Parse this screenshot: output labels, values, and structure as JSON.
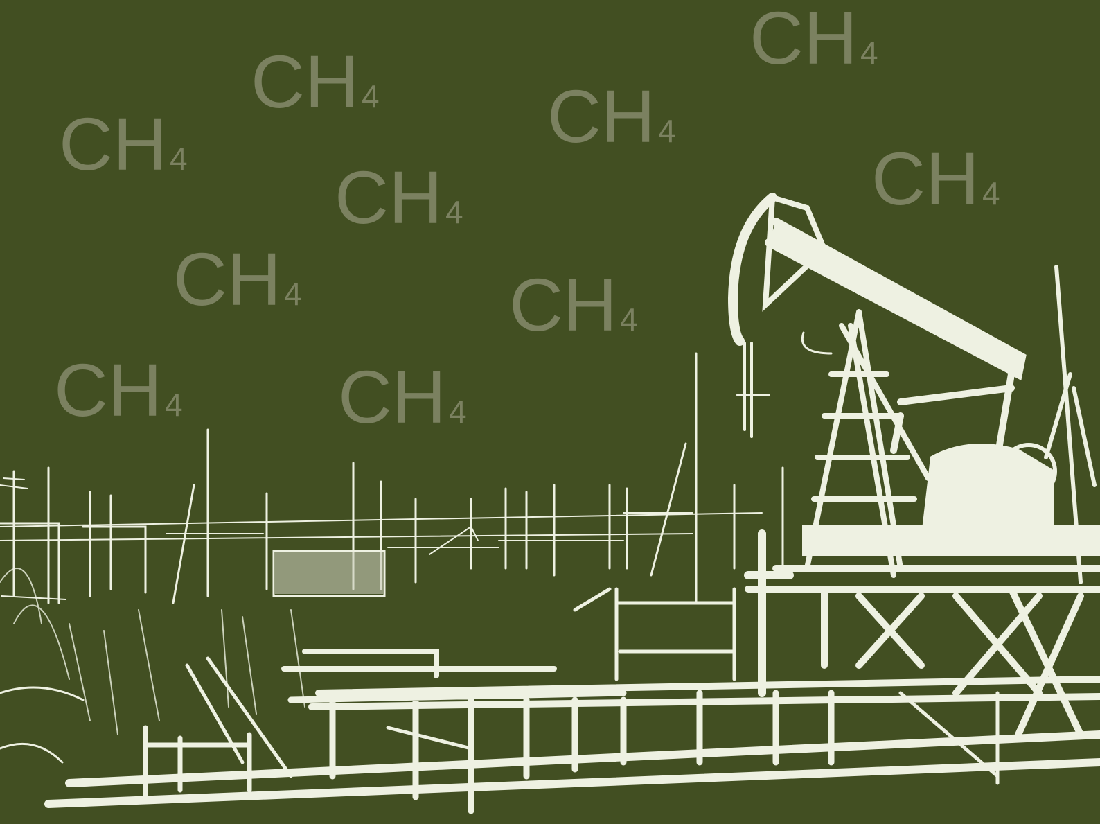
{
  "labels": [
    {
      "main": "CH",
      "sub": "4"
    },
    {
      "main": "CH",
      "sub": "4"
    },
    {
      "main": "CH",
      "sub": "4"
    },
    {
      "main": "CH",
      "sub": "4"
    },
    {
      "main": "CH",
      "sub": "4"
    },
    {
      "main": "CH",
      "sub": "4"
    },
    {
      "main": "CH",
      "sub": "4"
    },
    {
      "main": "CH",
      "sub": "4"
    },
    {
      "main": "CH",
      "sub": "4"
    },
    {
      "main": "CH",
      "sub": "4"
    }
  ]
}
